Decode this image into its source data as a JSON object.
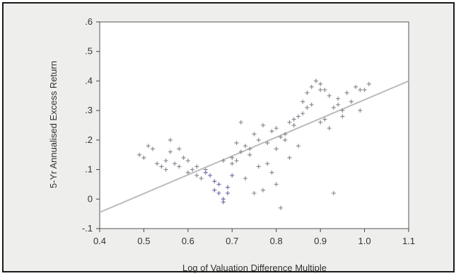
{
  "chart_data": {
    "type": "scatter",
    "title": "",
    "xlabel": "Log of Valuation Difference Multiple",
    "ylabel": "5-Yr Annualised Excess Return",
    "xlim": [
      0.4,
      1.1
    ],
    "ylim": [
      -0.1,
      0.6
    ],
    "x_ticks": [
      "0.4",
      "0.5",
      "0.6",
      "0.7",
      "0.8",
      "0.9",
      "1.0",
      "1.1"
    ],
    "y_ticks": [
      "-.1",
      "0",
      ".1",
      ".2",
      ".3",
      ".4",
      ".5",
      ".6"
    ],
    "grid": false,
    "legend": "none",
    "colors": {
      "points": "#8a8a94",
      "points_highlight": "#6f6fa8",
      "fit_line": "#bcbcbc",
      "plot_bg": "#ffffff",
      "outer_bg": "#eeeeec"
    },
    "fit_line": {
      "x": [
        0.4,
        1.1
      ],
      "y": [
        -0.045,
        0.4
      ]
    },
    "series": [
      {
        "x": [
          0.49,
          0.5,
          0.51,
          0.53,
          0.54,
          0.55,
          0.55,
          0.56,
          0.57,
          0.58,
          0.59,
          0.6,
          0.61,
          0.62,
          0.63,
          0.64,
          0.65,
          0.66,
          0.66,
          0.67,
          0.67,
          0.68,
          0.68,
          0.69,
          0.69,
          0.7,
          0.7,
          0.71,
          0.72,
          0.73,
          0.74,
          0.75,
          0.76,
          0.77,
          0.78,
          0.79,
          0.8,
          0.81,
          0.82,
          0.83,
          0.84,
          0.85,
          0.86,
          0.87,
          0.88,
          0.89,
          0.9,
          0.91,
          0.92,
          0.93,
          0.94,
          0.95,
          0.96,
          0.97,
          0.98,
          0.99,
          1.0,
          1.01,
          0.72,
          0.74,
          0.76,
          0.78,
          0.8,
          0.82,
          0.84,
          0.86,
          0.88,
          0.9,
          0.92,
          0.94,
          0.75,
          0.79,
          0.83,
          0.87,
          0.91,
          0.95,
          0.99,
          0.56,
          0.58,
          0.62,
          0.64,
          0.68,
          0.71,
          0.73,
          0.77,
          0.81,
          0.85,
          0.89,
          0.93,
          0.52,
          0.6,
          0.7,
          0.8,
          0.9
        ],
        "y": [
          0.15,
          0.14,
          0.18,
          0.12,
          0.11,
          0.13,
          0.1,
          0.16,
          0.12,
          0.11,
          0.14,
          0.09,
          0.1,
          0.08,
          0.07,
          0.09,
          0.08,
          0.06,
          0.03,
          0.02,
          0.05,
          -0.01,
          0.0,
          0.04,
          0.02,
          0.12,
          0.14,
          0.13,
          0.26,
          0.18,
          0.17,
          0.22,
          0.2,
          0.25,
          0.19,
          0.23,
          0.24,
          0.21,
          0.2,
          0.26,
          0.25,
          0.28,
          0.33,
          0.36,
          0.38,
          0.4,
          0.39,
          0.37,
          0.35,
          0.31,
          0.34,
          0.3,
          0.36,
          0.33,
          0.38,
          0.37,
          0.37,
          0.39,
          0.16,
          0.15,
          0.11,
          0.12,
          0.17,
          0.22,
          0.27,
          0.29,
          0.32,
          0.26,
          0.24,
          0.32,
          0.02,
          0.09,
          0.14,
          0.31,
          0.27,
          0.28,
          0.3,
          0.2,
          0.17,
          0.11,
          0.1,
          0.13,
          0.19,
          0.07,
          0.03,
          -0.03,
          0.18,
          0.4,
          0.02,
          0.17,
          0.13,
          0.08,
          0.05,
          0.37
        ]
      }
    ]
  }
}
